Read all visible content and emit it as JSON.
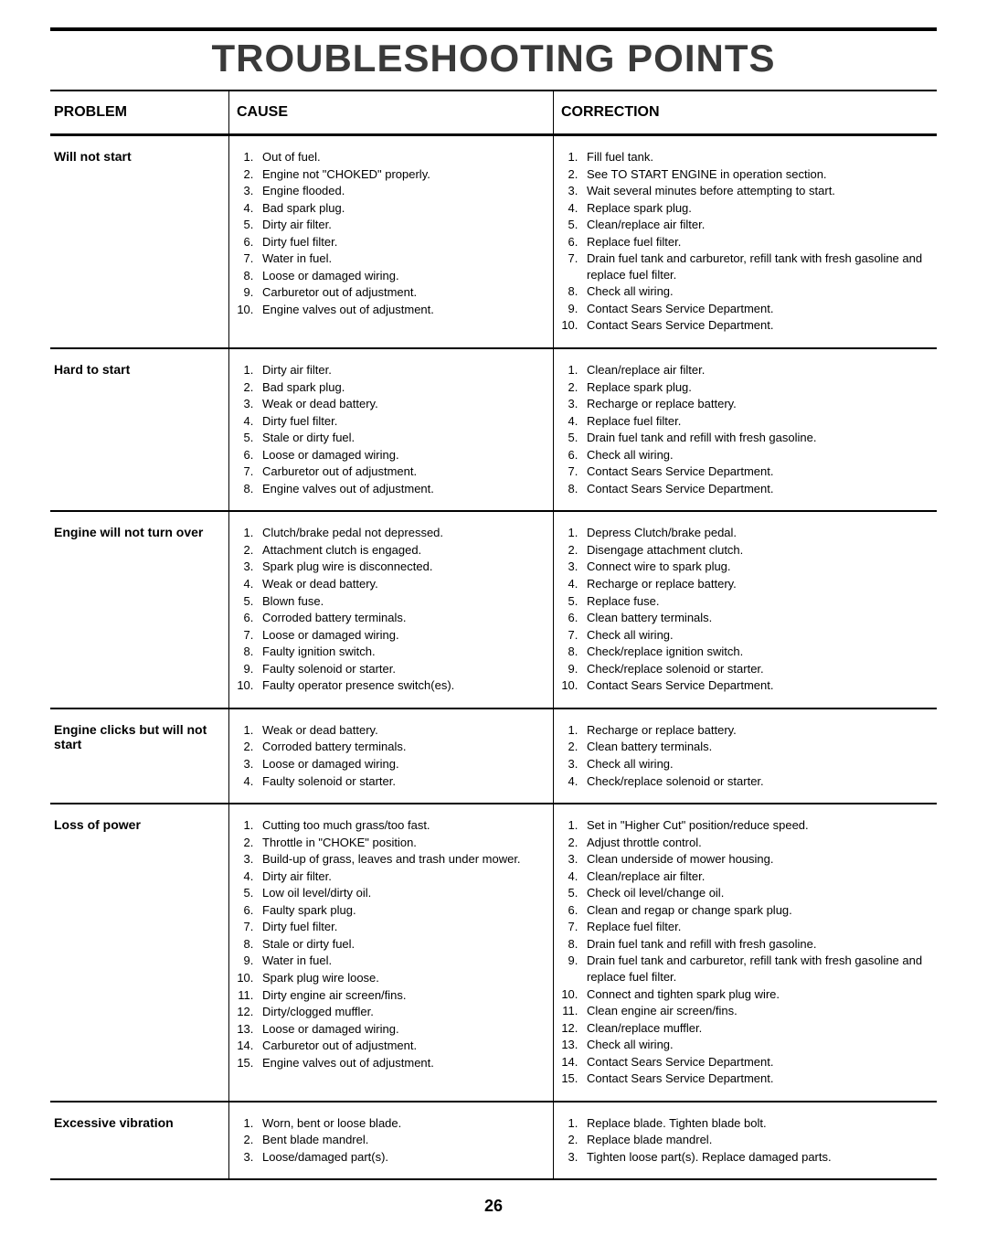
{
  "title": "TROUBLESHOOTING POINTS",
  "page_number": "26",
  "headers": {
    "problem": "PROBLEM",
    "cause": "CAUSE",
    "correction": "CORRECTION"
  },
  "rows": [
    {
      "problem": "Will not start",
      "causes": [
        "Out of fuel.",
        "Engine not \"CHOKED\" properly.",
        "Engine flooded.",
        "Bad spark plug.",
        "Dirty air filter.",
        "Dirty fuel filter.",
        "Water in fuel.",
        "Loose or damaged wiring.",
        "Carburetor out of adjustment.",
        "Engine valves out of adjustment."
      ],
      "corrections": [
        "Fill fuel tank.",
        "See TO START ENGINE in operation section.",
        "Wait several minutes before attempting to start.",
        "Replace spark plug.",
        "Clean/replace air filter.",
        "Replace fuel filter.",
        "Drain fuel tank and carburetor, refill tank with fresh gasoline and replace fuel filter.",
        "Check all wiring.",
        "Contact Sears Service Department.",
        "Contact Sears Service Department."
      ]
    },
    {
      "problem": "Hard to start",
      "causes": [
        "Dirty air filter.",
        "Bad spark plug.",
        "Weak or dead battery.",
        "Dirty fuel filter.",
        "Stale or dirty fuel.",
        "Loose or damaged wiring.",
        "Carburetor out of adjustment.",
        "Engine valves out of adjustment."
      ],
      "corrections": [
        "Clean/replace air filter.",
        "Replace spark plug.",
        "Recharge or replace battery.",
        "Replace fuel filter.",
        "Drain fuel tank and refill with fresh gasoline.",
        "Check all wiring.",
        "Contact Sears Service Department.",
        "Contact Sears Service Department."
      ]
    },
    {
      "problem": "Engine will not turn over",
      "causes": [
        "Clutch/brake pedal not depressed.",
        "Attachment clutch is engaged.",
        "Spark plug wire is disconnected.",
        "Weak or dead battery.",
        "Blown fuse.",
        "Corroded battery terminals.",
        "Loose or damaged wiring.",
        "Faulty ignition switch.",
        "Faulty solenoid or starter.",
        "Faulty operator presence switch(es)."
      ],
      "corrections": [
        "Depress Clutch/brake pedal.",
        "Disengage attachment clutch.",
        "Connect wire to spark plug.",
        "Recharge or replace battery.",
        "Replace fuse.",
        "Clean battery terminals.",
        "Check all wiring.",
        "Check/replace ignition switch.",
        "Check/replace solenoid or starter.",
        "Contact Sears Service Department."
      ]
    },
    {
      "problem": "Engine clicks but will not start",
      "causes": [
        "Weak or dead battery.",
        "Corroded battery terminals.",
        "Loose or damaged wiring.",
        "Faulty solenoid or starter."
      ],
      "corrections": [
        "Recharge or replace battery.",
        "Clean battery terminals.",
        "Check all wiring.",
        "Check/replace solenoid or starter."
      ]
    },
    {
      "problem": "Loss of power",
      "causes": [
        "Cutting too much grass/too fast.",
        "Throttle in \"CHOKE\" position.",
        "Build-up of grass, leaves and trash under mower.",
        "Dirty air filter.",
        "Low oil level/dirty oil.",
        "Faulty spark plug.",
        "Dirty fuel filter.",
        "Stale or dirty fuel.",
        "Water in fuel.",
        "Spark plug wire loose.",
        "Dirty engine air screen/fins.",
        "Dirty/clogged muffler.",
        "Loose or damaged wiring.",
        "Carburetor out of adjustment.",
        "Engine valves out of adjustment."
      ],
      "corrections": [
        "Set in \"Higher Cut\" position/reduce speed.",
        "Adjust throttle control.",
        "Clean underside of mower housing.",
        "Clean/replace air filter.",
        "Check oil level/change oil.",
        "Clean and regap or change spark plug.",
        "Replace fuel filter.",
        "Drain fuel tank and refill with fresh gasoline.",
        "Drain fuel tank and carburetor, refill tank with fresh gasoline and replace fuel filter.",
        "Connect and tighten spark plug wire.",
        "Clean engine air screen/fins.",
        "Clean/replace muffler.",
        "Check all wiring.",
        "Contact Sears Service Department.",
        "Contact Sears Service Department."
      ]
    },
    {
      "problem": "Excessive vibration",
      "causes": [
        "Worn, bent or loose blade.",
        "Bent blade mandrel.",
        "Loose/damaged part(s)."
      ],
      "corrections": [
        "Replace blade. Tighten blade bolt.",
        "Replace blade mandrel.",
        "Tighten loose part(s). Replace damaged parts."
      ]
    }
  ]
}
